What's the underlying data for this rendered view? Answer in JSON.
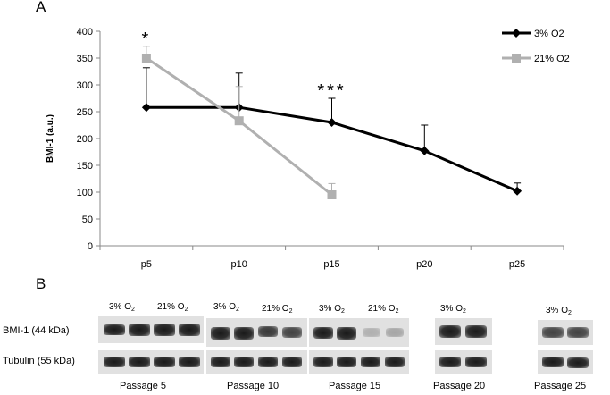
{
  "panels": {
    "a": "A",
    "b": "B"
  },
  "chart_data": {
    "type": "line",
    "ylabel": "BMI-1 (a.u.)",
    "xlabel": "",
    "categories": [
      "p5",
      "p10",
      "p15",
      "p20",
      "p25"
    ],
    "ylim": [
      0,
      400
    ],
    "yticks": [
      0,
      50,
      100,
      150,
      200,
      250,
      300,
      350,
      400
    ],
    "grid": false,
    "legend_position": "top-right",
    "series": [
      {
        "name": "3% O2",
        "color": "#000000",
        "marker": "diamond",
        "values": [
          258,
          258,
          230,
          177,
          102
        ],
        "error_upper": [
          332,
          322,
          275,
          225,
          117
        ]
      },
      {
        "name": "21% O2",
        "color": "#b0b0b0",
        "marker": "square",
        "values": [
          350,
          233,
          95,
          null,
          null
        ],
        "error_upper": [
          372,
          297,
          116,
          null,
          null
        ]
      }
    ],
    "annotations": [
      {
        "text": "*",
        "category": "p5"
      },
      {
        "text": "***",
        "category": "p15"
      }
    ]
  },
  "western_blot": {
    "row_labels": [
      "BMI-1 (44 kDa)",
      "Tubulin (55 kDa)"
    ],
    "condition_prefix_3": "3% O",
    "condition_prefix_21": "21% O",
    "condition_sub": "2",
    "passages": [
      "Passage 5",
      "Passage 10",
      "Passage 15",
      "Passage 20",
      "Passage 25"
    ]
  }
}
